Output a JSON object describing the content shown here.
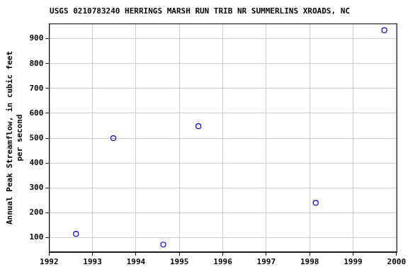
{
  "chart_data": {
    "type": "scatter",
    "title": "USGS 0210783240 HERRINGS MARSH RUN TRIB NR SUMMERLINS XROADS, NC",
    "y_label": [
      "Annual Peak Streamflow, in cubic feet",
      "per second"
    ],
    "x": [
      1992.62,
      1993.48,
      1994.63,
      1995.44,
      1998.14,
      1999.72
    ],
    "values": [
      115,
      500,
      72,
      548,
      240,
      934
    ],
    "color": "#0000cc",
    "marker": "circle",
    "xlim": [
      1992,
      2000
    ],
    "xticks": [
      1992,
      1993,
      1994,
      1995,
      1996,
      1997,
      1998,
      1999,
      2000
    ],
    "ylim": [
      42,
      961
    ],
    "yticks": [
      100,
      200,
      300,
      400,
      500,
      600,
      700,
      800,
      900
    ],
    "grid": true
  }
}
